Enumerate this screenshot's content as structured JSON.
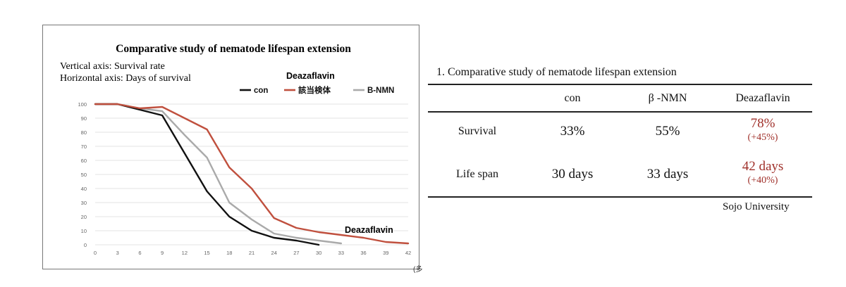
{
  "chart_data": {
    "type": "line",
    "title": "Comparative study of nematode lifespan extension",
    "ylabel": "Vertical axis: Survival rate",
    "xlabel": "Horizontal axis: Days of survival",
    "legend_heading": "Deazaflavin",
    "legend_placement": "top-right",
    "annotation": "Deazaflavin",
    "x": [
      0,
      3,
      6,
      9,
      12,
      15,
      18,
      21,
      24,
      27,
      30,
      33,
      36,
      39,
      42
    ],
    "xticks": [
      "0",
      "3",
      "6",
      "9",
      "12",
      "15",
      "18",
      "21",
      "24",
      "27",
      "30",
      "33",
      "36",
      "39",
      "42"
    ],
    "yticks": [
      "0",
      "10",
      "20",
      "30",
      "40",
      "50",
      "60",
      "70",
      "80",
      "90",
      "100"
    ],
    "xlim": [
      0,
      42
    ],
    "ylim": [
      0,
      100
    ],
    "grid": true,
    "series": [
      {
        "name": "con",
        "color": "#111111",
        "x": [
          0,
          3,
          6,
          9,
          12,
          15,
          18,
          21,
          24,
          27,
          30
        ],
        "values": [
          100,
          100,
          96,
          92,
          65,
          38,
          20,
          10,
          5,
          3,
          0
        ]
      },
      {
        "name": "該当検体",
        "color": "#c0503e",
        "x": [
          0,
          3,
          6,
          9,
          12,
          15,
          18,
          21,
          24,
          27,
          30,
          33,
          36,
          39,
          42
        ],
        "values": [
          100,
          100,
          97,
          98,
          90,
          82,
          55,
          40,
          19,
          12,
          9,
          7,
          5,
          2,
          1
        ]
      },
      {
        "name": "B-NMN",
        "color": "#aaaaaa",
        "x": [
          0,
          3,
          6,
          9,
          12,
          15,
          18,
          21,
          24,
          27,
          30,
          33
        ],
        "values": [
          100,
          100,
          97,
          95,
          78,
          62,
          30,
          18,
          8,
          5,
          3,
          1
        ]
      }
    ]
  },
  "corner_mark": "(多",
  "table": {
    "title": "1. Comparative study of nematode lifespan extension",
    "headers": [
      "con",
      "β -NMN",
      "Deazaflavin"
    ],
    "rows": [
      {
        "label": "Survival",
        "con": "33%",
        "nmn": "55%",
        "deaza": "78%",
        "deaza_change": "(+45%)"
      },
      {
        "label": "Life span",
        "con": "30 days",
        "nmn": "33 days",
        "deaza": "42 days",
        "deaza_change": "(+40%)"
      }
    ],
    "credit": "Sojo University",
    "highlight_color": "#a0312b"
  }
}
